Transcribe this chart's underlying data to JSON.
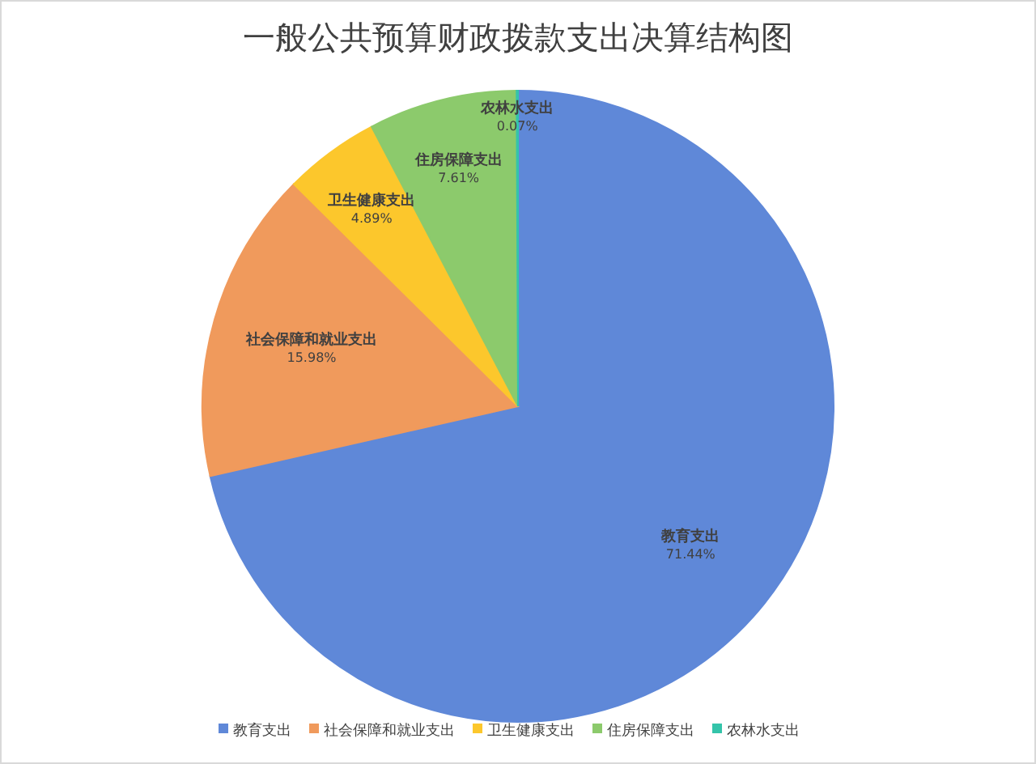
{
  "chart_data": {
    "type": "pie",
    "title": "一般公共预算财政拨款支出决算结构图",
    "categories": [
      "教育支出",
      "社会保障和就业支出",
      "卫生健康支出",
      "住房保障支出",
      "农林水支出"
    ],
    "values": [
      71.44,
      15.98,
      4.89,
      7.61,
      0.07
    ],
    "colors": [
      "#5f88d8",
      "#f09a5c",
      "#fcc72c",
      "#8cca6c",
      "#34c4aa"
    ],
    "value_labels": [
      "71.44%",
      "15.98%",
      "4.89%",
      "7.61%",
      "0.07%"
    ],
    "legend": "bottom"
  }
}
